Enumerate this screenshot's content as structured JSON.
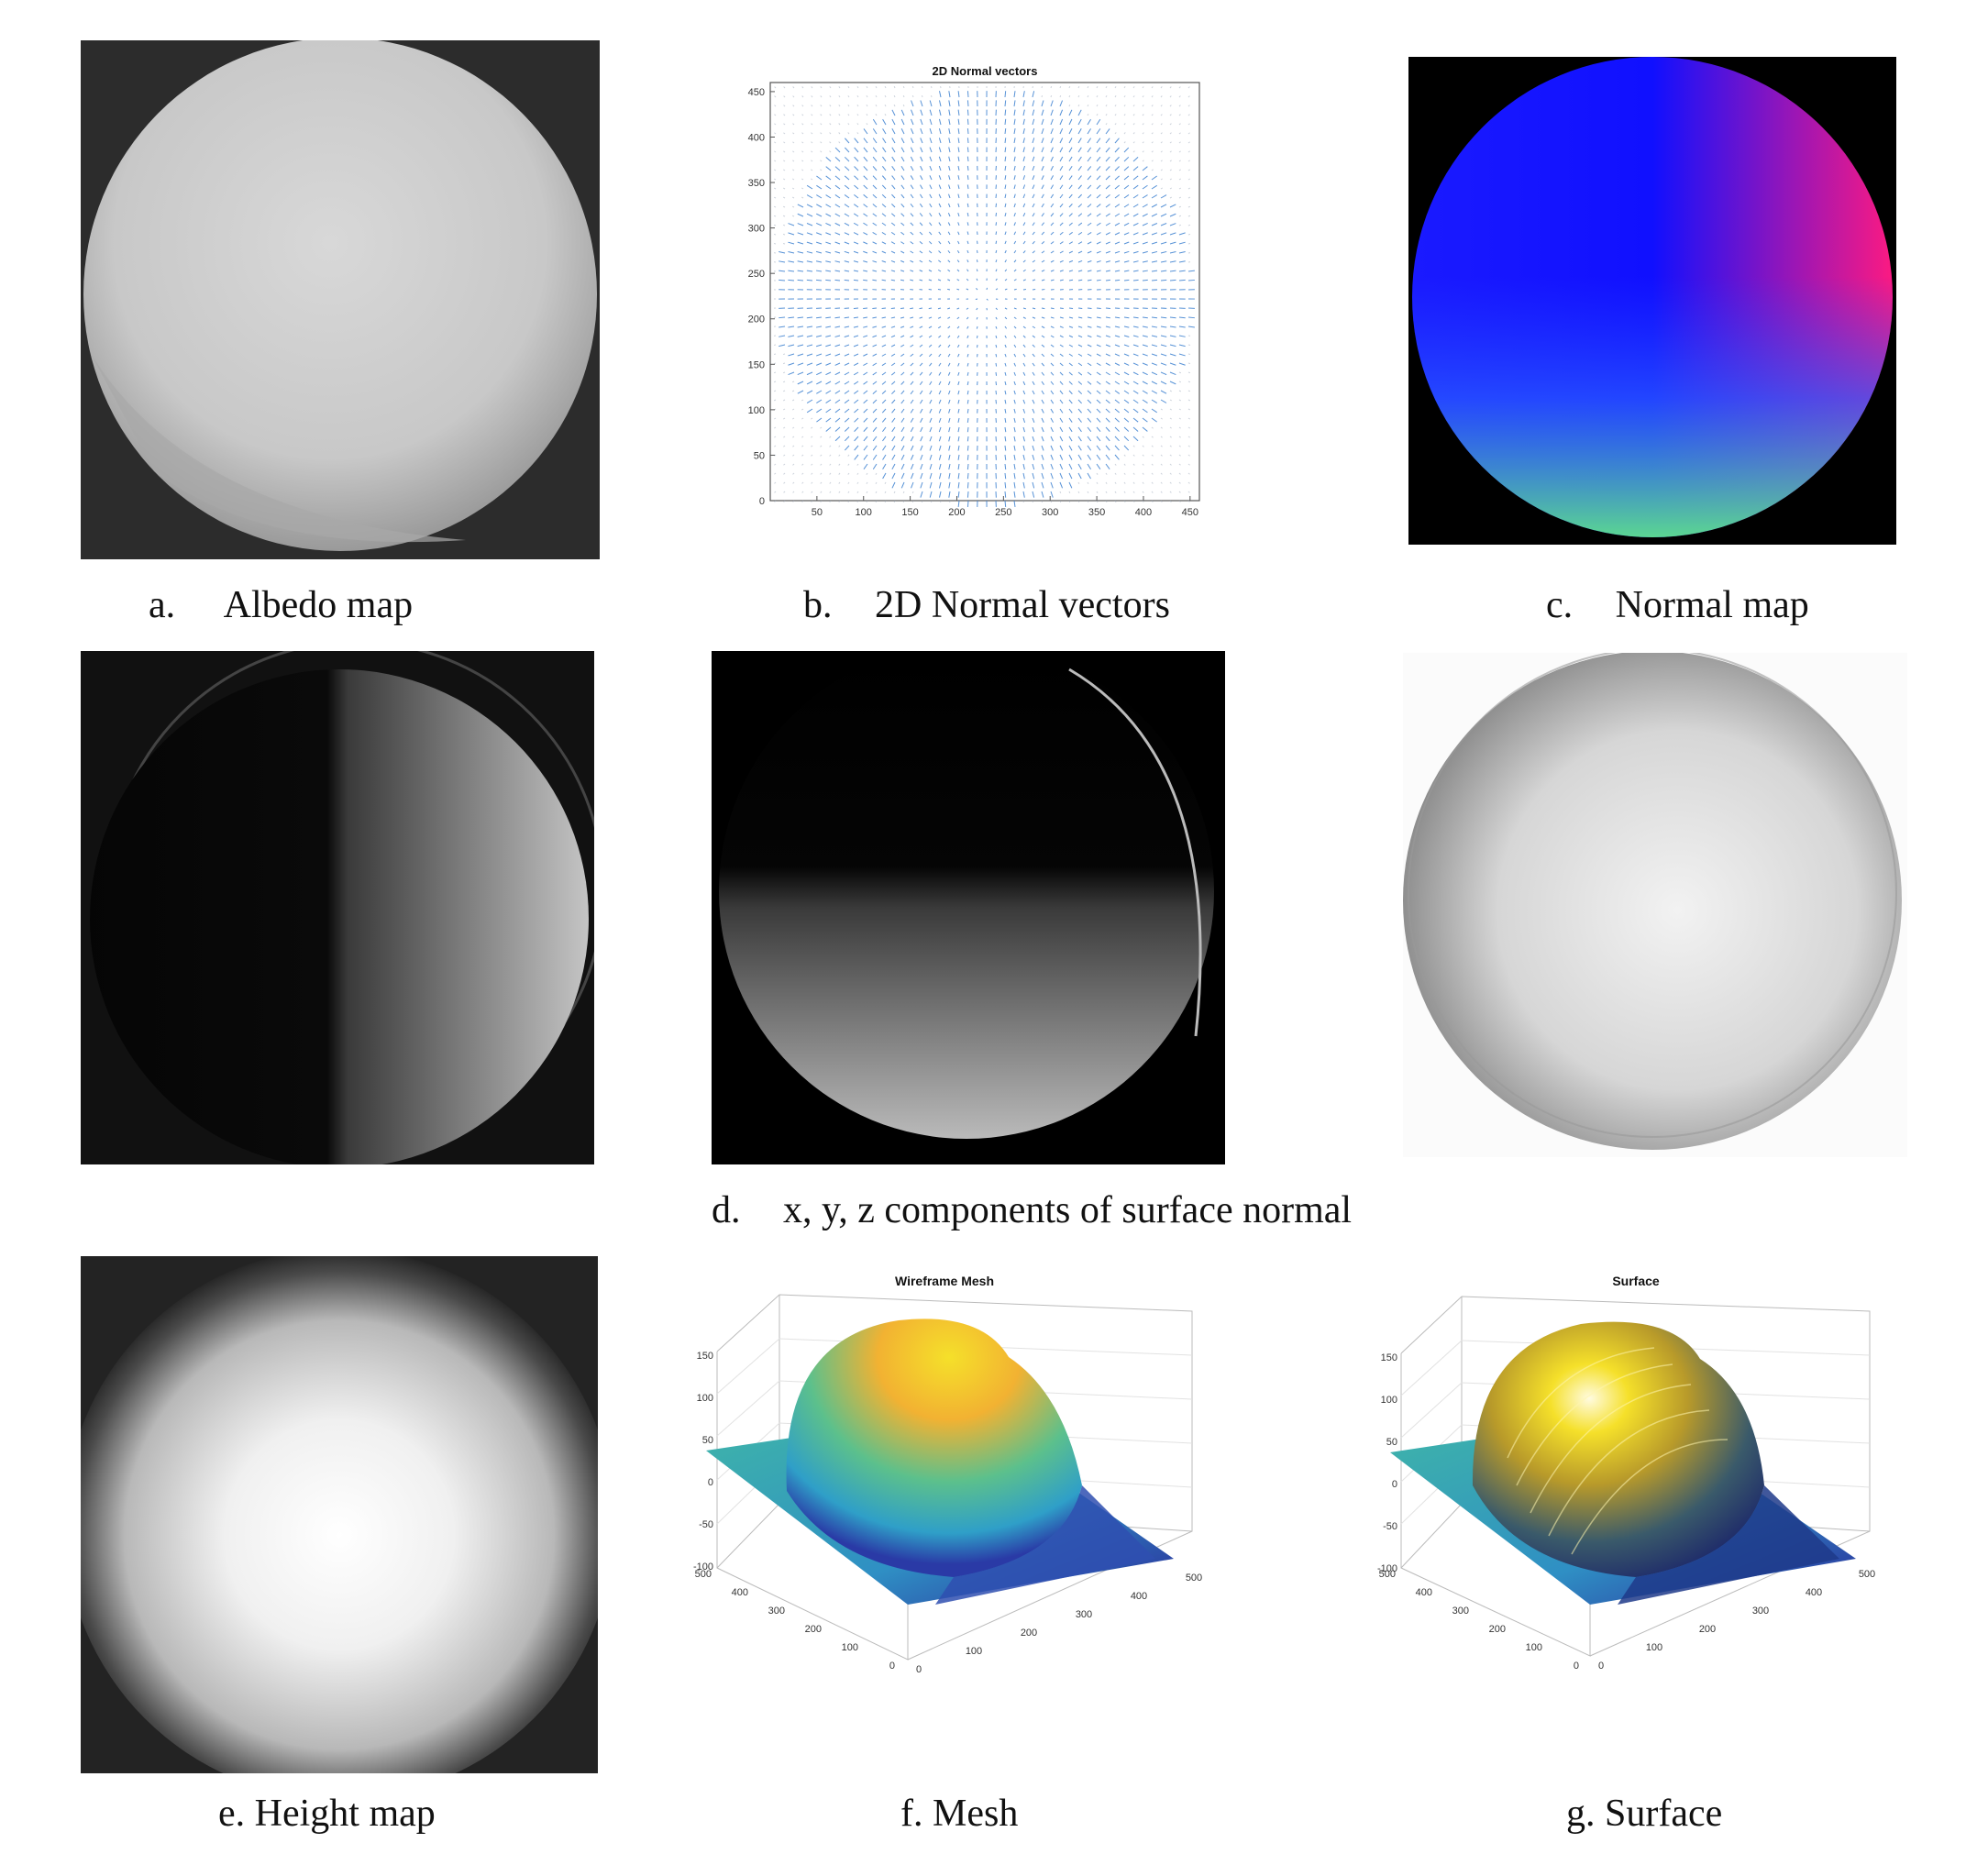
{
  "captions": {
    "a": {
      "letter": "a.",
      "text": "Albedo map"
    },
    "b": {
      "letter": "b.",
      "text": "2D Normal vectors"
    },
    "c": {
      "letter": "c.",
      "text": "Normal map"
    },
    "d": {
      "letter": "d.",
      "text": "x, y, z components of  surface normal"
    },
    "e": {
      "text": "e. Height map"
    },
    "f": {
      "text": "f. Mesh"
    },
    "g": {
      "text": "g. Surface"
    }
  },
  "quiver": {
    "title": "2D Normal vectors",
    "x_ticks": [
      "50",
      "100",
      "150",
      "200",
      "250",
      "300",
      "350",
      "400",
      "450"
    ],
    "y_ticks": [
      "450",
      "400",
      "350",
      "300",
      "250",
      "200",
      "150",
      "100",
      "50",
      "0"
    ],
    "arrow_color": "#3a7fd0"
  },
  "mesh": {
    "title": "Wireframe Mesh",
    "z_ticks": [
      "150",
      "100",
      "50",
      "0",
      "-50",
      "-100"
    ],
    "y_ticks": [
      "500",
      "400",
      "300",
      "200",
      "100",
      "0"
    ],
    "x_ticks": [
      "0",
      "100",
      "200",
      "300",
      "400",
      "500"
    ]
  },
  "surface": {
    "title": "Surface",
    "z_ticks": [
      "150",
      "100",
      "50",
      "0",
      "-50",
      "-100"
    ],
    "y_ticks": [
      "500",
      "400",
      "300",
      "200",
      "100",
      "0"
    ],
    "x_ticks": [
      "0",
      "100",
      "200",
      "300",
      "400",
      "500"
    ]
  },
  "colors": {
    "normal_blue": "#1414ff",
    "normal_magenta": "#ff1a80",
    "normal_green": "#5fe08a",
    "surface_yellow": "#f5e02a",
    "surface_teal": "#3fb6a8",
    "surface_navy": "#2a2a9a"
  }
}
